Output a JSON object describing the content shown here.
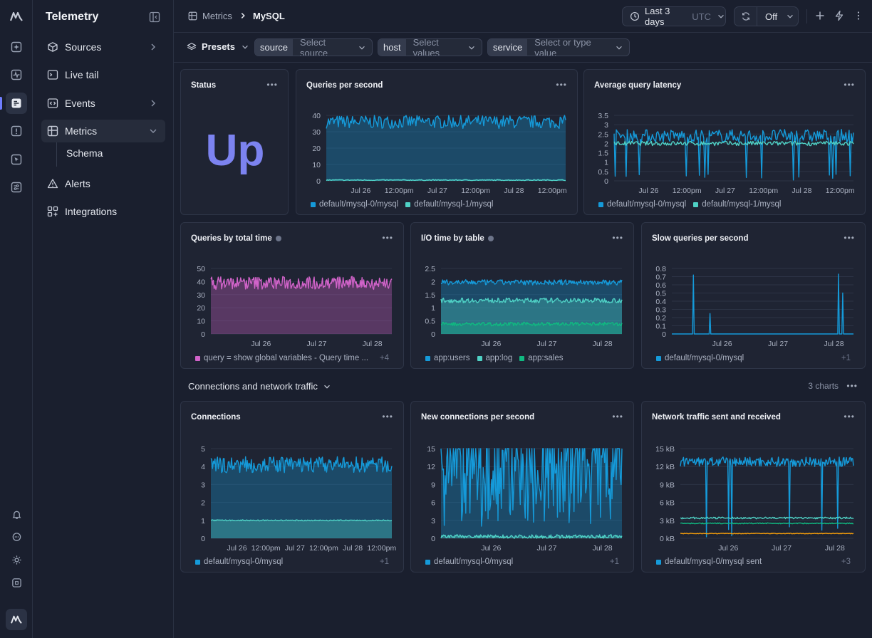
{
  "colors": {
    "blue": "#159ad9",
    "teal": "#4fd1c5",
    "green": "#10b981",
    "pink": "#d163c9",
    "orange": "#f59e0b",
    "accent": "#7c83f0"
  },
  "rail": {
    "icons": [
      "logo-icon",
      "sparkle-icon",
      "activity-icon",
      "logs-icon",
      "alert-square-icon",
      "cursor-icon",
      "sliders-icon",
      "bell-icon",
      "chat-icon",
      "sun-icon",
      "command-icon",
      "app-logo-icon"
    ]
  },
  "sidebar": {
    "title": "Telemetry",
    "items": [
      {
        "label": "Sources",
        "icon": "cube-icon"
      },
      {
        "label": "Live tail",
        "icon": "terminal-icon"
      },
      {
        "label": "Events",
        "icon": "code-icon"
      },
      {
        "label": "Metrics",
        "icon": "grid-icon"
      },
      {
        "label": "Alerts",
        "icon": "warning-icon"
      },
      {
        "label": "Integrations",
        "icon": "plus-grid-icon"
      }
    ],
    "sub_item": "Schema"
  },
  "topbar": {
    "breadcrumb_parent": "Metrics",
    "breadcrumb_current": "MySQL",
    "time_range": "Last 3 days",
    "timezone": "UTC",
    "refresh": "Off"
  },
  "filters": {
    "presets": "Presets",
    "source_key": "source",
    "source_placeholder": "Select source",
    "host_key": "host",
    "host_placeholder": "Select values",
    "service_key": "service",
    "service_placeholder": "Select or type value"
  },
  "cards": {
    "status": {
      "title": "Status",
      "value": "Up"
    },
    "qps": {
      "title": "Queries per second",
      "legend": [
        "default/mysql-0/mysql",
        "default/mysql-1/mysql"
      ]
    },
    "latency": {
      "title": "Average query latency",
      "legend": [
        "default/mysql-0/mysql",
        "default/mysql-1/mysql"
      ]
    },
    "total_time": {
      "title": "Queries by total time",
      "legend": [
        "query = show global variables - Query time ..."
      ],
      "more": "+4"
    },
    "io_time": {
      "title": "I/O time by table",
      "legend": [
        "app:users",
        "app:log",
        "app:sales"
      ]
    },
    "slow": {
      "title": "Slow queries per second",
      "legend": [
        "default/mysql-0/mysql"
      ],
      "more": "+1"
    },
    "connections": {
      "title": "Connections",
      "legend": [
        "default/mysql-0/mysql"
      ],
      "more": "+1"
    },
    "new_conn": {
      "title": "New connections per second",
      "legend": [
        "default/mysql-0/mysql"
      ],
      "more": "+1"
    },
    "network": {
      "title": "Network traffic sent and received",
      "legend": [
        "default/mysql-0/mysql sent"
      ],
      "more": "+3"
    }
  },
  "section": {
    "title": "Connections and network traffic",
    "count": "3 charts"
  },
  "chart_data": [
    {
      "id": "qps",
      "type": "area",
      "ylim": [
        0,
        40
      ],
      "yticks": [
        "40",
        "30",
        "20",
        "10",
        "0"
      ],
      "xticks": [
        "Jul 26",
        "12:00pm",
        "Jul 27",
        "12:00pm",
        "Jul 28",
        "12:00pm"
      ],
      "series": [
        {
          "values": [
            36,
            4,
            0
          ],
          "color": "#159ad9"
        },
        {
          "values": [
            0.5,
            0.3,
            0
          ],
          "color": "#4fd1c5"
        }
      ]
    },
    {
      "id": "latency",
      "type": "line",
      "ylim": [
        0,
        3.5
      ],
      "yticks": [
        "3.5",
        "3",
        "2.5",
        "2",
        "1.5",
        "1",
        "0.5",
        "0"
      ],
      "xticks": [
        "Jul 26",
        "12:00pm",
        "Jul 27",
        "12:00pm",
        "Jul 28",
        "12:00pm"
      ],
      "series": [
        {
          "values": [
            2.4,
            0.35,
            0.7
          ],
          "color": "#159ad9"
        },
        {
          "values": [
            2.0,
            0.12,
            0
          ],
          "color": "#4fd1c5"
        }
      ]
    },
    {
      "id": "total_time",
      "type": "area",
      "ylim": [
        0,
        50
      ],
      "yticks": [
        "50",
        "40",
        "30",
        "20",
        "10",
        "0"
      ],
      "xticks": [
        "Jul 26",
        "Jul 27",
        "Jul 28"
      ],
      "series": [
        {
          "values": [
            39,
            5,
            0
          ],
          "color": "#d163c9"
        }
      ]
    },
    {
      "id": "io_time",
      "type": "area",
      "ylim": [
        0,
        2.5
      ],
      "yticks": [
        "2.5",
        "2",
        "1.5",
        "1",
        "0.5",
        "0"
      ],
      "xticks": [
        "Jul 26",
        "Jul 27",
        "Jul 28"
      ],
      "series": [
        {
          "values": [
            1.97,
            0.1,
            0
          ],
          "color": "#159ad9"
        },
        {
          "values": [
            1.28,
            0.09,
            0
          ],
          "color": "#4fd1c5"
        },
        {
          "values": [
            0.38,
            0.07,
            0
          ],
          "color": "#10b981"
        }
      ]
    },
    {
      "id": "slow",
      "type": "line",
      "ylim": [
        0,
        0.8
      ],
      "yticks": [
        "0.8",
        "0.7",
        "0.6",
        "0.5",
        "0.4",
        "0.3",
        "0.2",
        "0.1",
        "0"
      ],
      "xticks": [
        "Jul 26",
        "Jul 27",
        "Jul 28"
      ],
      "series": [
        {
          "values": [
            0,
            0,
            0
          ],
          "color": "#159ad9",
          "spikes": [
            [
              0.12,
              0.72
            ],
            [
              0.21,
              0.25
            ],
            [
              0.92,
              0.73
            ],
            [
              0.94,
              0.5
            ]
          ]
        }
      ]
    },
    {
      "id": "connections",
      "type": "area",
      "ylim": [
        0,
        5
      ],
      "yticks": [
        "5",
        "4",
        "3",
        "2",
        "1",
        "0"
      ],
      "xticks": [
        "Jul 26",
        "12:00pm",
        "Jul 27",
        "12:00pm",
        "Jul 28",
        "12:00pm"
      ],
      "series": [
        {
          "values": [
            4.1,
            0.45,
            0
          ],
          "color": "#159ad9"
        },
        {
          "values": [
            1.0,
            0.03,
            0
          ],
          "color": "#4fd1c5"
        }
      ]
    },
    {
      "id": "new_conn",
      "type": "area",
      "ylim": [
        0,
        15
      ],
      "yticks": [
        "15",
        "12",
        "9",
        "6",
        "3",
        "0"
      ],
      "xticks": [
        "Jul 26",
        "Jul 27",
        "Jul 28"
      ],
      "series": [
        {
          "values": [
            12,
            10,
            0
          ],
          "color": "#159ad9"
        },
        {
          "values": [
            0.3,
            0.3,
            0
          ],
          "color": "#4fd1c5"
        }
      ]
    },
    {
      "id": "network",
      "type": "line",
      "ylim": [
        0,
        15
      ],
      "yticks": [
        "15 kB",
        "12 kB",
        "9 kB",
        "6 kB",
        "3 kB",
        "0 kB"
      ],
      "xticks": [
        "Jul 26",
        "Jul 27",
        "Jul 28"
      ],
      "series": [
        {
          "values": [
            12.8,
            0.8,
            0.5
          ],
          "color": "#159ad9"
        },
        {
          "values": [
            3.4,
            0.15,
            0
          ],
          "color": "#4fd1c5"
        },
        {
          "values": [
            2.5,
            0.08,
            0
          ],
          "color": "#10b981"
        },
        {
          "values": [
            0.8,
            0.05,
            0
          ],
          "color": "#f59e0b"
        }
      ]
    }
  ]
}
